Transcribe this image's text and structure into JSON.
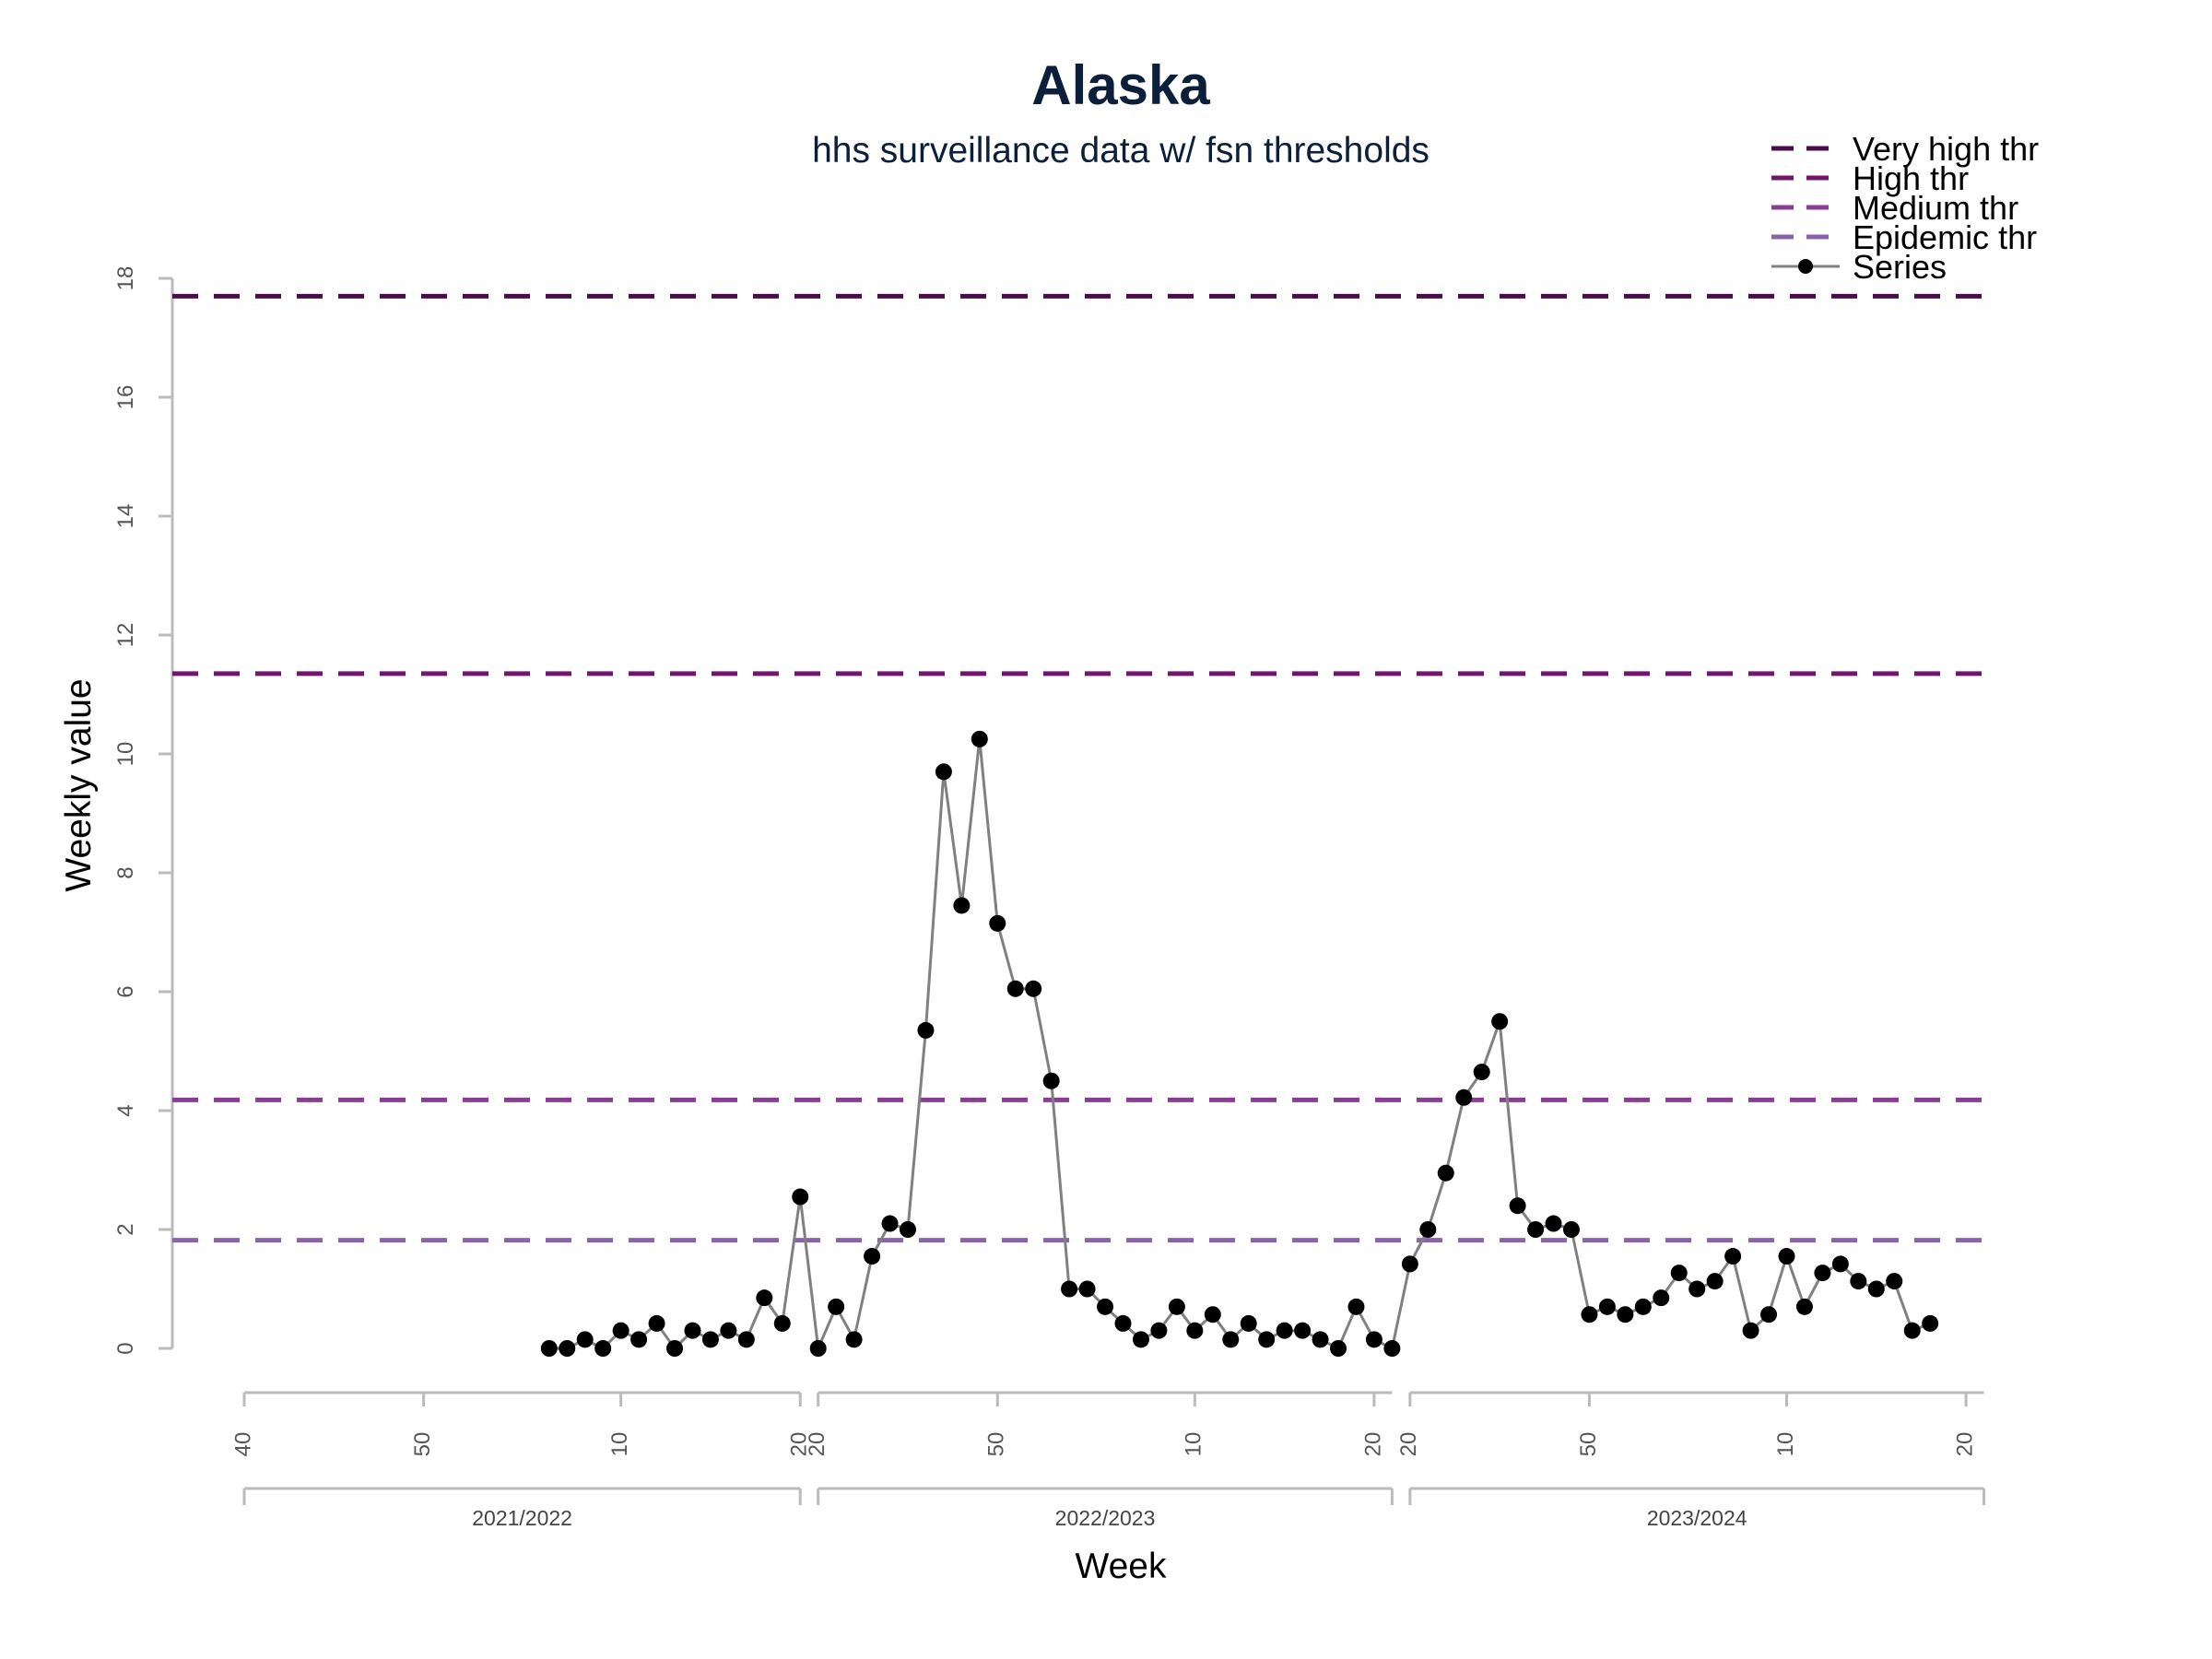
{
  "chart_data": {
    "type": "line",
    "title": "Alaska",
    "subtitle": "hhs surveillance data w/ fsn thresholds",
    "xlabel": "Week",
    "ylabel": "Weekly value",
    "ylim": [
      0,
      18
    ],
    "yticks": [
      0,
      2,
      4,
      6,
      8,
      10,
      12,
      14,
      16,
      18
    ],
    "x_week_ticks": [
      "40",
      "50",
      "10",
      "20",
      "20",
      "50",
      "10",
      "20",
      "20",
      "50",
      "10",
      "20"
    ],
    "seasons": [
      "2021/2022",
      "2022/2023",
      "2023/2024"
    ],
    "legend_position": "top-right",
    "grid": false,
    "thresholds": [
      {
        "name": "Very high thr",
        "value": 17.7,
        "color": "#4a0d4a"
      },
      {
        "name": "High thr",
        "value": 11.35,
        "color": "#73146e"
      },
      {
        "name": "Medium thr",
        "value": 4.18,
        "color": "#8a3c97"
      },
      {
        "name": "Epidemic thr",
        "value": 1.82,
        "color": "#8a63ad"
      }
    ],
    "series": [
      {
        "name": "Series",
        "color": "#000000",
        "line_color": "#808080",
        "values": [
          0.0,
          0.0,
          0.15,
          0.0,
          0.3,
          0.15,
          0.42,
          0.0,
          0.3,
          0.15,
          0.3,
          0.15,
          0.85,
          0.42,
          2.55,
          0.0,
          0.7,
          0.15,
          1.55,
          2.1,
          2.0,
          5.35,
          9.7,
          7.45,
          10.25,
          7.15,
          6.05,
          6.05,
          4.5,
          1.0,
          1.0,
          0.7,
          0.42,
          0.15,
          0.3,
          0.7,
          0.3,
          0.57,
          0.15,
          0.42,
          0.15,
          0.3,
          0.3,
          0.15,
          0.0,
          0.7,
          0.15,
          0.0,
          1.42,
          2.0,
          2.95,
          4.22,
          4.65,
          5.5,
          2.4,
          2.0,
          2.1,
          2.0,
          0.57,
          0.7,
          0.57,
          0.7,
          0.85,
          1.27,
          1.0,
          1.13,
          1.55,
          0.3,
          0.57,
          1.55,
          0.7,
          1.27,
          1.42,
          1.13,
          1.0,
          1.13,
          0.3,
          0.42
        ]
      }
    ]
  }
}
